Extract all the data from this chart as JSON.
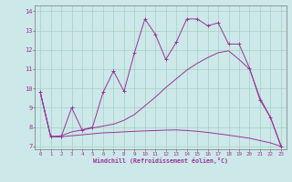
{
  "background_color": "#cce8e8",
  "line_color": "#993399",
  "xlim": [
    -0.5,
    23.5
  ],
  "ylim": [
    6.85,
    14.3
  ],
  "xticks": [
    0,
    1,
    2,
    3,
    4,
    5,
    6,
    7,
    8,
    9,
    10,
    11,
    12,
    13,
    14,
    15,
    16,
    17,
    18,
    19,
    20,
    21,
    22,
    23
  ],
  "yticks": [
    7,
    8,
    9,
    10,
    11,
    12,
    13,
    14
  ],
  "xlabel": "Windchill (Refroidissement éolien,°C)",
  "jagged_x": [
    0,
    1,
    2,
    3,
    4,
    5,
    6,
    7,
    8,
    9,
    10,
    11,
    12,
    13,
    14,
    15,
    16,
    17,
    18,
    19,
    20,
    21,
    22,
    23
  ],
  "jagged_y": [
    9.8,
    7.5,
    7.5,
    9.0,
    7.85,
    8.0,
    9.8,
    10.9,
    9.85,
    11.85,
    13.6,
    12.8,
    11.5,
    12.4,
    13.6,
    13.6,
    13.25,
    13.4,
    12.3,
    12.3,
    11.05,
    9.4,
    8.5,
    7.0
  ],
  "mid_x": [
    0,
    1,
    2,
    3,
    4,
    5,
    6,
    7,
    8,
    9,
    10,
    11,
    12,
    13,
    14,
    15,
    16,
    17,
    18,
    19,
    20,
    21,
    22,
    23
  ],
  "mid_y": [
    9.8,
    7.5,
    7.55,
    7.75,
    7.85,
    7.95,
    8.05,
    8.15,
    8.35,
    8.65,
    9.1,
    9.55,
    10.05,
    10.5,
    10.95,
    11.3,
    11.6,
    11.85,
    11.95,
    11.5,
    11.0,
    9.5,
    8.5,
    7.05
  ],
  "low_x": [
    0,
    1,
    2,
    3,
    4,
    5,
    6,
    7,
    8,
    9,
    10,
    11,
    12,
    13,
    14,
    15,
    16,
    17,
    18,
    19,
    20,
    21,
    22,
    23
  ],
  "low_y": [
    9.8,
    7.5,
    7.5,
    7.55,
    7.6,
    7.65,
    7.7,
    7.72,
    7.75,
    7.78,
    7.8,
    7.82,
    7.84,
    7.85,
    7.82,
    7.78,
    7.72,
    7.65,
    7.58,
    7.5,
    7.42,
    7.3,
    7.18,
    7.0
  ]
}
